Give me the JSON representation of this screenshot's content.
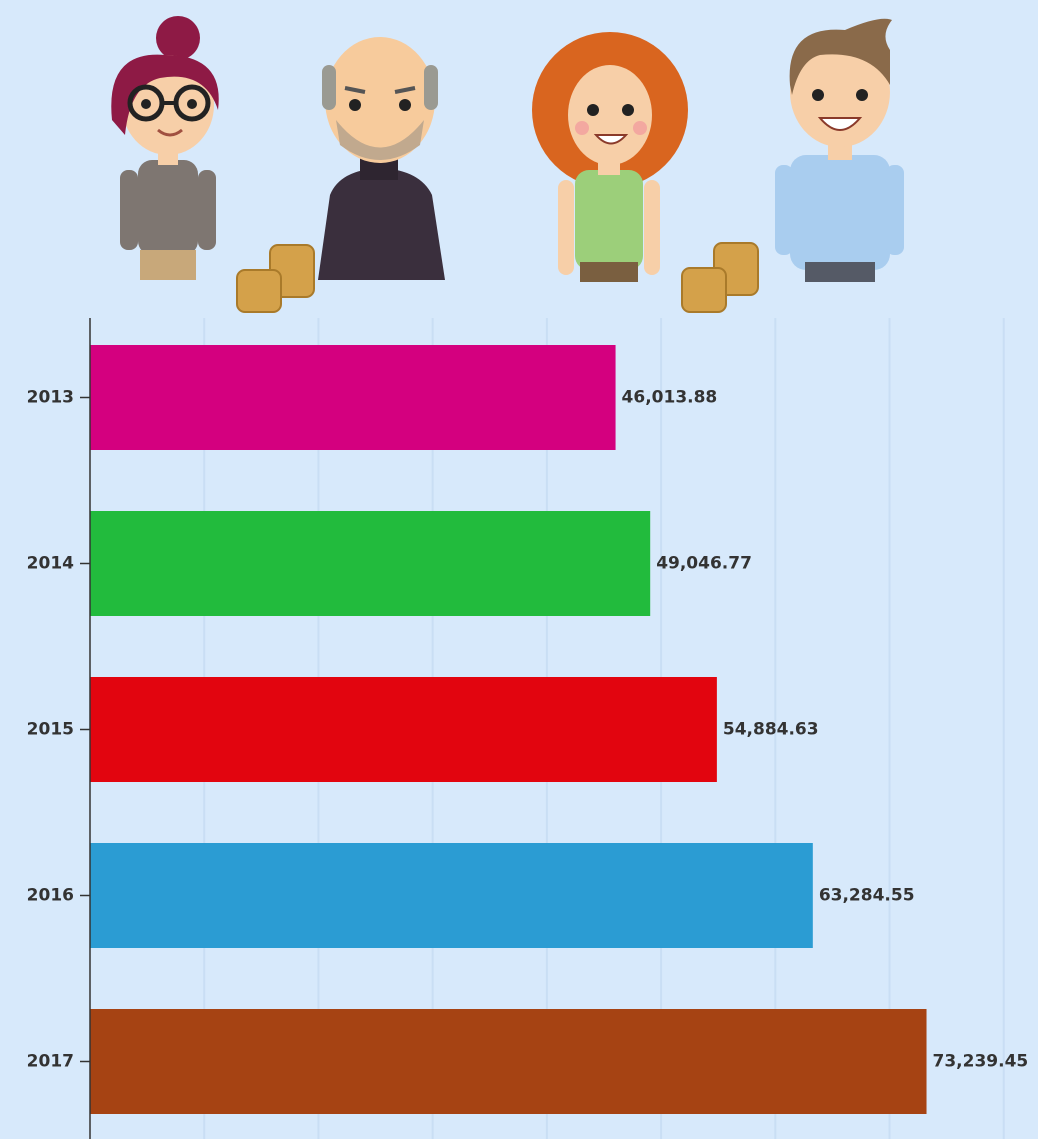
{
  "chart_data": {
    "type": "bar",
    "orientation": "horizontal",
    "categories": [
      "2013",
      "2014",
      "2015",
      "2016",
      "2017"
    ],
    "values": [
      46013.88,
      49046.77,
      54884.63,
      63284.55,
      73239.45
    ],
    "value_labels": [
      "46,013.88",
      "49,046.77",
      "54,884.63",
      "63,284.55",
      "73,239.45"
    ],
    "colors": [
      "#d4007f",
      "#22bb3d",
      "#e2050f",
      "#2b9cd3",
      "#a64313"
    ],
    "xlim": [
      0,
      83000
    ],
    "xticks": [
      10000,
      20000,
      30000,
      40000,
      50000,
      60000,
      70000,
      80000
    ],
    "grid": true
  }
}
